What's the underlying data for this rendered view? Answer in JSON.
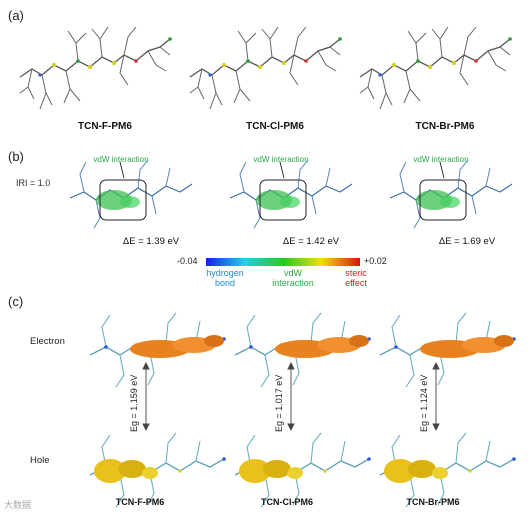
{
  "panels": {
    "a": {
      "label": "(a)",
      "names": [
        "TCN-F-PM6",
        "TCN-Cl-PM6",
        "TCN-Br-PM6"
      ]
    },
    "b": {
      "label": "(b)",
      "iri": "IRI = 1.0",
      "callout": "vdW interaction",
      "energies": [
        "ΔE = 1.39 eV",
        "ΔE = 1.42 eV",
        "ΔE = 1.69 eV"
      ],
      "scale": {
        "min": "-0.04",
        "max": "+0.02",
        "labels": [
          "hydrogen bond",
          "vdW interaction",
          "steric effect"
        ],
        "colors": [
          "#1a1aff",
          "#19d4e6",
          "#22cc22",
          "#f0e000",
          "#e01010"
        ]
      }
    },
    "c": {
      "label": "(c)",
      "rows": [
        "Electron",
        "Hole"
      ],
      "gaps": [
        "Eg = 1.159 eV",
        "Eg = 1.017 eV",
        "Eg = 1.124 eV"
      ],
      "names": [
        "TCN-F-PM6",
        "TCN-Cl-PM6",
        "TCN-Br-PM6"
      ],
      "electron_color": "#e8821e",
      "hole_color": "#e8c21a"
    }
  },
  "watermark": "大数据"
}
